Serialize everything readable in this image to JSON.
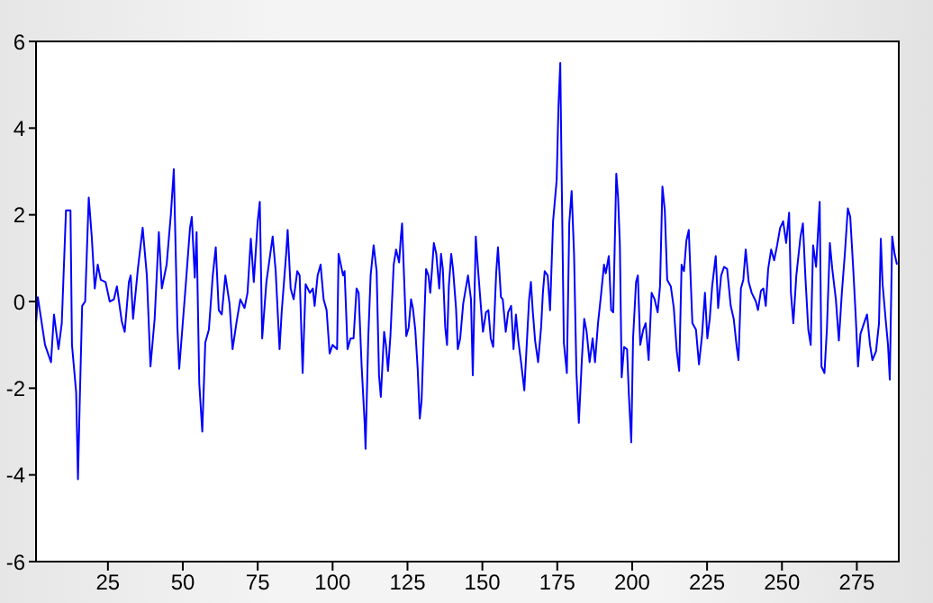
{
  "chart_data": {
    "type": "line",
    "xlim": [
      1,
      289
    ],
    "xticks": [
      25,
      50,
      75,
      100,
      125,
      150,
      175,
      200,
      225,
      250,
      275
    ],
    "ylim": [
      -6,
      6
    ],
    "yticks": [
      -6,
      -4,
      -2,
      0,
      2,
      4,
      6
    ],
    "marker": "none",
    "line_style": "solid",
    "series": [
      {
        "color": "#0000ff",
        "x": [
          1,
          1.6,
          4,
          6,
          7,
          8.5,
          9.6,
          11,
          12.5,
          13,
          14.4,
          15,
          15.6,
          16.4,
          17.4,
          18.6,
          19.6,
          20.6,
          21.6,
          22.6,
          24.2,
          25.6,
          27,
          28,
          29.6,
          30.6,
          32,
          32.6,
          33.4,
          35,
          36.6,
          38,
          39.2,
          40.6,
          42,
          43,
          44.6,
          46,
          47,
          48.2,
          48.8,
          51,
          52.4,
          53,
          54,
          54.6,
          55.5,
          56.5,
          57.5,
          58.7,
          60,
          61,
          62,
          63,
          64.2,
          65.6,
          66.6,
          68,
          69.2,
          70.6,
          71.6,
          72.7,
          73.7,
          75,
          75.7,
          76.5,
          77.9,
          79,
          80,
          81,
          82.3,
          83,
          84.5,
          85,
          86,
          87,
          88.2,
          89,
          90,
          91,
          92.4,
          93.4,
          94,
          95,
          96,
          97,
          98,
          99,
          100,
          101.5,
          102,
          103.5,
          104,
          105,
          106,
          107,
          108,
          108.7,
          109.7,
          110.7,
          111,
          111.9,
          112.7,
          113.7,
          114.7,
          115.5,
          116.1,
          117.2,
          117.8,
          118.5,
          119.3,
          120.4,
          121.2,
          122.2,
          122.8,
          123.2,
          124,
          124.6,
          125.4,
          126.2,
          126.8,
          127.6,
          128.4,
          129.1,
          129.7,
          130.6,
          131.2,
          132,
          132.6,
          133.2,
          133.8,
          134.6,
          135.6,
          136.2,
          136.8,
          137.6,
          138.2,
          138.8,
          139.6,
          140.2,
          141.2,
          141.8,
          142.6,
          143.6,
          145.2,
          146.2,
          146.8,
          147.8,
          148.6,
          149.6,
          150.2,
          151.2,
          152,
          152.8,
          153.6,
          154.6,
          155.2,
          156.2,
          156.8,
          157.8,
          158.6,
          159.6,
          160.4,
          161.2,
          162,
          163,
          164,
          164.8,
          165.6,
          166.2,
          166.8,
          167.6,
          168.6,
          169.6,
          170.2,
          170.8,
          171.8,
          172.6,
          173.6,
          174.8,
          175.4,
          176,
          176.4,
          177.2,
          178.2,
          179,
          179.8,
          180.6,
          181.4,
          182.2,
          183.2,
          184,
          184.8,
          185.8,
          186.8,
          187.6,
          188.6,
          189.6,
          190.6,
          191.2,
          192.2,
          193,
          193.7,
          194.7,
          195.3,
          195.9,
          196.5,
          197.3,
          198.3,
          198.9,
          199.7,
          200.3,
          201.3,
          201.9,
          202.7,
          203.7,
          204.5,
          205.5,
          206.5,
          207.5,
          208.5,
          209.3,
          210.1,
          210.9,
          211.7,
          212.9,
          213.9,
          214.9,
          215.7,
          216.5,
          217.3,
          218.1,
          218.9,
          220.1,
          221.3,
          222.3,
          223.3,
          224.3,
          225.1,
          225.9,
          226.7,
          227.9,
          228.7,
          229.7,
          230.7,
          231.7,
          232.9,
          233.9,
          234.9,
          235.5,
          236.3,
          237.1,
          237.9,
          238.9,
          239.9,
          241.3,
          242,
          243,
          243.8,
          244.6,
          245.4,
          246.4,
          247.4,
          248.4,
          249.4,
          250.4,
          251.4,
          252.4,
          253,
          253.8,
          254.8,
          256.2,
          257,
          257.8,
          258.8,
          259.6,
          260.4,
          261.4,
          262.2,
          262.6,
          263.2,
          264.2,
          265,
          266,
          266.8,
          268,
          269,
          270,
          271,
          272,
          272.8,
          273.8,
          274.6,
          275.4,
          276.2,
          277.4,
          278.4,
          279.4,
          280.2,
          281.4,
          282.4,
          283,
          283.6,
          284.6,
          285.4,
          286,
          286.8,
          287.6,
          288.4
        ],
        "values": [
          -0.5,
          0.1,
          -1,
          -1.4,
          -0.3,
          -1.1,
          -0.5,
          2.1,
          2.1,
          -1,
          -2.1,
          -4.1,
          -2.3,
          -0.1,
          0,
          2.4,
          1.5,
          0.3,
          0.85,
          0.5,
          0.45,
          0,
          0.05,
          0.35,
          -0.45,
          -0.7,
          0.45,
          0.6,
          -0.4,
          0.75,
          1.7,
          0.6,
          -1.5,
          -0.4,
          1.6,
          0.3,
          0.85,
          2,
          3.05,
          -0.6,
          -1.55,
          0.4,
          1.7,
          1.95,
          0.55,
          1.6,
          -1.9,
          -3,
          -0.95,
          -0.65,
          0.6,
          1.25,
          -0.2,
          -0.3,
          0.6,
          -0.05,
          -1.1,
          -0.45,
          0.05,
          -0.15,
          0.2,
          1.45,
          0.45,
          1.85,
          2.3,
          -0.85,
          0.45,
          1,
          1.5,
          0.7,
          -1.1,
          -0.25,
          1.1,
          1.65,
          0.3,
          0.05,
          0.7,
          0.6,
          -1.65,
          0.4,
          0.2,
          0.3,
          -0.1,
          0.6,
          0.85,
          0.05,
          -0.2,
          -1.2,
          -1,
          -1.1,
          1.1,
          0.6,
          0.7,
          -1.1,
          -0.85,
          -0.85,
          0.3,
          0.2,
          -1.5,
          -2.8,
          -3.4,
          -0.85,
          0.6,
          1.3,
          0.7,
          -1.7,
          -2.2,
          -0.7,
          -1,
          -1.6,
          -0.8,
          0.85,
          1.2,
          0.9,
          1.5,
          1.8,
          0.3,
          -0.8,
          -0.6,
          0.05,
          -0.15,
          -0.65,
          -1.55,
          -2.7,
          -2.3,
          -0.45,
          0.75,
          0.6,
          0.2,
          0.75,
          1.35,
          1.1,
          0.3,
          1.1,
          0.75,
          -0.6,
          -1,
          0.35,
          1.1,
          0.75,
          -0.15,
          -1.1,
          -0.85,
          -0.05,
          0.6,
          0.05,
          -1.7,
          1.5,
          0.7,
          -0.2,
          -0.7,
          -0.25,
          -0.2,
          -0.85,
          -1.05,
          0.65,
          1.25,
          0.1,
          0.05,
          -0.7,
          -0.25,
          -0.1,
          -1.1,
          -0.3,
          -0.9,
          -1.45,
          -2.05,
          -1,
          0.05,
          0.45,
          -0.2,
          -0.9,
          -1.4,
          -0.6,
          0.2,
          0.7,
          0.6,
          -0.2,
          1.85,
          2.8,
          4.5,
          5.5,
          3.25,
          -0.95,
          -1.65,
          1.8,
          2.55,
          1.1,
          -1.65,
          -2.8,
          -1.35,
          -0.4,
          -0.7,
          -1.4,
          -0.85,
          -1.4,
          -0.5,
          0.15,
          0.85,
          0.65,
          1.05,
          -0.2,
          -0.25,
          2.95,
          2.4,
          1.3,
          -1.75,
          -1.05,
          -1.1,
          -2.15,
          -3.25,
          -0.85,
          0.45,
          0.6,
          -1,
          -0.65,
          -0.5,
          -1.35,
          0.2,
          0.05,
          -0.25,
          0.35,
          2.65,
          2.1,
          0.5,
          0.35,
          -0.15,
          -1.15,
          -1.6,
          0.85,
          0.7,
          1.4,
          1.65,
          -0.5,
          -0.65,
          -1.45,
          -0.8,
          0.2,
          -0.85,
          -0.4,
          0.35,
          1.05,
          -0.15,
          0.6,
          0.8,
          0.75,
          -0.1,
          -0.4,
          -1.05,
          -1.35,
          0.3,
          0.5,
          1.2,
          0.45,
          0.2,
          0,
          -0.2,
          0.25,
          0.3,
          -0.1,
          0.75,
          1.2,
          0.95,
          1.3,
          1.7,
          1.85,
          1.35,
          2.05,
          0.2,
          -0.5,
          0.6,
          1.5,
          1.8,
          0.6,
          -0.65,
          -1,
          1.3,
          0.8,
          1.8,
          2.3,
          -1.5,
          -1.65,
          -0.65,
          1.35,
          0.75,
          0.05,
          -0.9,
          0.2,
          1.1,
          2.15,
          1.95,
          0.75,
          -0.3,
          -1.5,
          -0.75,
          -0.5,
          -0.3,
          -1,
          -1.35,
          -1.15,
          -0.5,
          1.45,
          0.4,
          -0.4,
          -1,
          -1.8,
          1.5,
          1.1,
          0.85
        ]
      }
    ]
  }
}
